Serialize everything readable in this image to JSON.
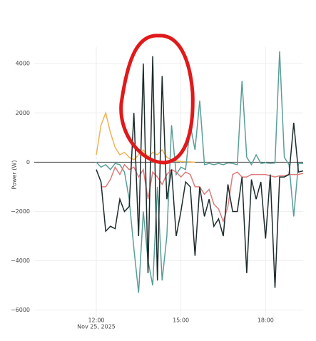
{
  "chart_data": {
    "type": "line",
    "y_label": "Power (W)",
    "x": [
      "2025-11-25T12:00",
      "2025-11-25T12:10",
      "2025-11-25T12:20",
      "2025-11-25T12:30",
      "2025-11-25T12:40",
      "2025-11-25T12:50",
      "2025-11-25T13:00",
      "2025-11-25T13:10",
      "2025-11-25T13:20",
      "2025-11-25T13:30",
      "2025-11-25T13:40",
      "2025-11-25T13:50",
      "2025-11-25T14:00",
      "2025-11-25T14:10",
      "2025-11-25T14:20",
      "2025-11-25T14:30",
      "2025-11-25T14:40",
      "2025-11-25T14:50",
      "2025-11-25T15:00",
      "2025-11-25T15:10",
      "2025-11-25T15:20",
      "2025-11-25T15:30",
      "2025-11-25T15:40",
      "2025-11-25T15:50",
      "2025-11-25T16:00",
      "2025-11-25T16:10",
      "2025-11-25T16:20",
      "2025-11-25T16:30",
      "2025-11-25T16:40",
      "2025-11-25T16:50",
      "2025-11-25T17:00",
      "2025-11-25T17:10",
      "2025-11-25T17:20",
      "2025-11-25T17:30",
      "2025-11-25T17:40",
      "2025-11-25T17:50",
      "2025-11-25T18:00",
      "2025-11-25T18:10",
      "2025-11-25T18:20",
      "2025-11-25T18:30",
      "2025-11-25T18:40",
      "2025-11-25T18:50",
      "2025-11-25T19:00",
      "2025-11-25T19:10",
      "2025-11-25T19:20"
    ],
    "series": [
      {
        "color": "#f0b354",
        "values": [
          300,
          1500,
          2000,
          1200,
          600,
          300,
          400,
          200,
          100,
          300,
          500,
          200,
          400,
          300,
          500,
          200,
          100,
          50,
          30,
          20,
          10,
          0,
          null,
          null,
          null,
          null,
          null,
          null,
          null,
          null,
          null,
          null,
          null,
          null,
          null,
          null,
          null,
          null,
          null,
          null,
          null,
          null,
          null,
          null,
          null
        ]
      },
      {
        "color": "#5a9e98",
        "values": [
          0,
          -200,
          -100,
          -300,
          -50,
          -100,
          -400,
          -1500,
          -3500,
          -5300,
          -2000,
          -4000,
          -5000,
          -1000,
          -4800,
          -3000,
          1500,
          -500,
          -200,
          -300,
          1500,
          500,
          2500,
          -100,
          -50,
          -100,
          -50,
          -100,
          -30,
          -50,
          -100,
          3300,
          200,
          -100,
          300,
          -50,
          -20,
          -50,
          -30,
          4500,
          200,
          -100,
          -2200,
          -50,
          -50
        ]
      },
      {
        "color": "#e07b7b",
        "values": [
          null,
          -1000,
          -1000,
          -700,
          -200,
          -500,
          -100,
          -300,
          -200,
          -600,
          -300,
          -1500,
          -400,
          -600,
          -900,
          -500,
          -300,
          -400,
          -600,
          -400,
          -500,
          -1000,
          -1000,
          -1300,
          -1100,
          -1700,
          -1900,
          -2400,
          -1800,
          -500,
          -400,
          -600,
          -600,
          -500,
          -500,
          -500,
          -500,
          -550,
          -600,
          -550,
          -550,
          -500,
          -500,
          -500,
          -450
        ]
      },
      {
        "color": "#1c2b2b",
        "values": [
          -300,
          -800,
          -2800,
          -2600,
          -2700,
          -1500,
          -2000,
          -1800,
          2000,
          -3000,
          4000,
          -4500,
          4300,
          -4800,
          3500,
          -1500,
          -300,
          -3000,
          -2000,
          -800,
          -1000,
          -3800,
          -1000,
          -2200,
          -1500,
          -2600,
          -2300,
          -3000,
          -900,
          -2000,
          -2000,
          -600,
          -4500,
          -700,
          -1500,
          -800,
          -3100,
          -500,
          -5100,
          -600,
          -600,
          -500,
          1600,
          -400,
          -350
        ]
      }
    ],
    "xlim": [
      "2025-11-25T09:48",
      "2025-11-25T19:20"
    ],
    "xticks": [
      {
        "value": "2025-11-25T12:00",
        "label": "12:00"
      },
      {
        "value": "2025-11-25T15:00",
        "label": "15:00"
      },
      {
        "value": "2025-11-25T18:00",
        "label": "18:00"
      }
    ],
    "x_date_label": "Nov 25, 2025",
    "ylim": [
      -6300,
      4700
    ],
    "yticks": [
      {
        "value": -6000,
        "label": "−6000"
      },
      {
        "value": -4000,
        "label": "−4000"
      },
      {
        "value": -2000,
        "label": "−2000"
      },
      0,
      2000,
      4000
    ],
    "grid": true
  }
}
